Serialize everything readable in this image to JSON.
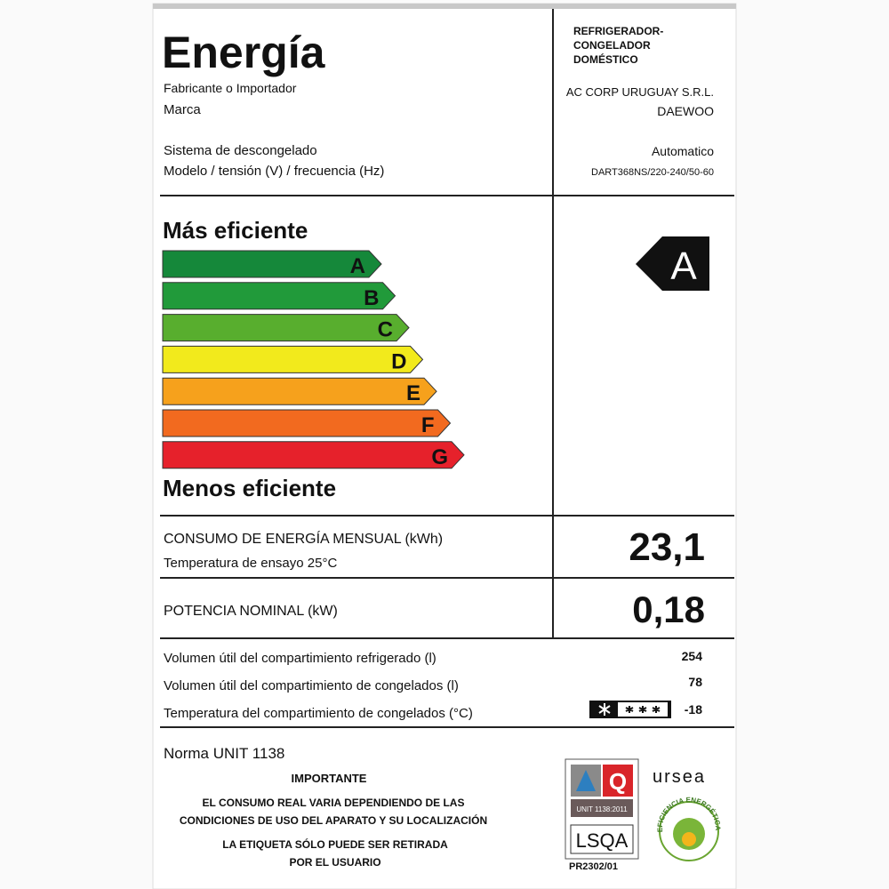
{
  "header": {
    "title": "Energía",
    "product_type": [
      "REFRIGERADOR-",
      "CONGELADOR",
      "DOMÉSTICO"
    ],
    "fields": [
      {
        "label": "Fabricante o Importador",
        "value": "AC CORP URUGUAY S.R.L."
      },
      {
        "label": "Marca",
        "value": "DAEWOO"
      },
      {
        "label": "Sistema de descongelado",
        "value": "Automatico"
      },
      {
        "label": "Modelo / tensión (V) / frecuencia (Hz)",
        "value": "DART368NS/220-240/50-60"
      }
    ]
  },
  "efficiency": {
    "top_label": "Más eficiente",
    "bottom_label": "Menos eficiente",
    "classes": [
      {
        "name": "A",
        "color": "#15883a"
      },
      {
        "name": "B",
        "color": "#219a3a"
      },
      {
        "name": "C",
        "color": "#58ae2e"
      },
      {
        "name": "D",
        "color": "#f2ea1c"
      },
      {
        "name": "E",
        "color": "#f6a11c"
      },
      {
        "name": "F",
        "color": "#f26a1f"
      },
      {
        "name": "G",
        "color": "#e6212b"
      }
    ],
    "rating": "A"
  },
  "consumption": {
    "label": "CONSUMO DE ENERGÍA MENSUAL (kWh)",
    "test_temperature": "Temperatura de ensayo  25°C",
    "value": "23,1"
  },
  "power": {
    "label": "POTENCIA NOMINAL (kW)",
    "value": "0,18"
  },
  "volumes": [
    {
      "label": "Volumen útil del compartimiento refrigerado (l)",
      "value": "254"
    },
    {
      "label": "Volumen útil del compartimiento de congelados (l)",
      "value": "78"
    },
    {
      "label": "Temperatura del compartimiento de congelados (°C)",
      "value": "-18"
    }
  ],
  "footer": {
    "standard": "Norma UNIT 1138",
    "notice_title": "IMPORTANTE",
    "notice": [
      "EL CONSUMO REAL VARIA DEPENDIENDO DE LAS",
      "CONDICIONES DE USO DEL APARATO Y SU LOCALIZACIÓN"
    ],
    "removal": [
      "LA ETIQUETA SÓLO PUEDE SER RETIRADA",
      "POR EL USUARIO"
    ]
  },
  "certification": {
    "standard": "UNIT 1138:2011",
    "brand": "LSQA",
    "mark": "Q",
    "code": "PR2302/01",
    "regulator": "ursea",
    "seal": "EFICIENCIA ENERGÉTICA"
  }
}
